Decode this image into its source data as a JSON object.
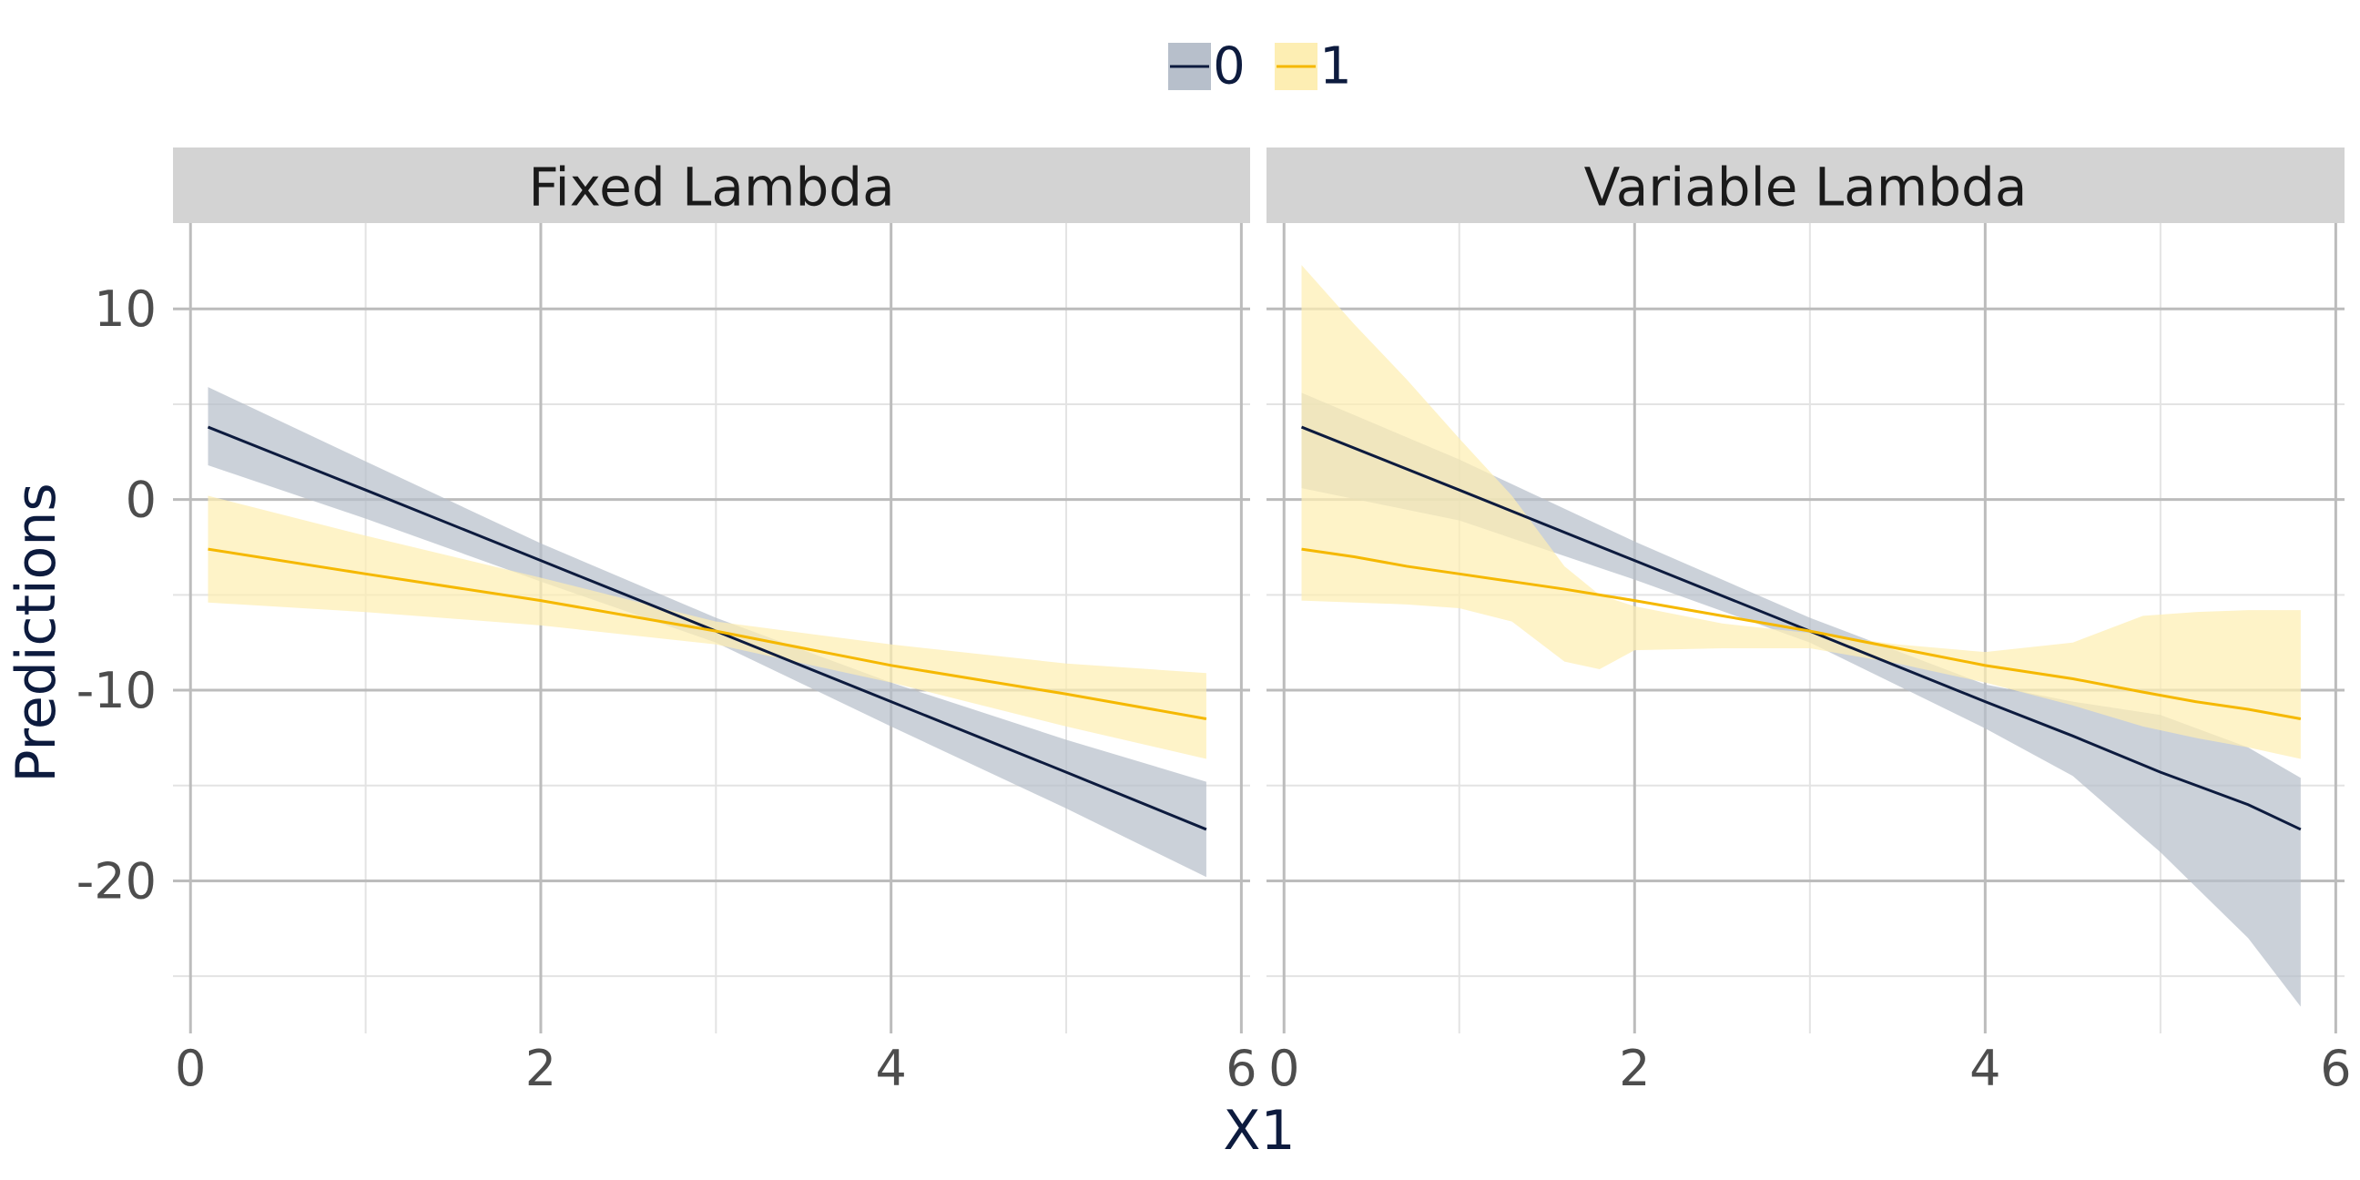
{
  "chart_data": {
    "type": "line",
    "xlabel": "X1",
    "ylabel": "Predictions",
    "xlim": [
      -0.1,
      6.05
    ],
    "ylim": [
      -28,
      14.5
    ],
    "xticks": [
      0,
      2,
      4,
      6
    ],
    "xtick_labels": [
      "0",
      "2",
      "4",
      "6"
    ],
    "yticks": [
      10,
      0,
      -10,
      -20
    ],
    "ytick_labels": [
      "10",
      "0",
      "-10",
      "-20"
    ],
    "grid": true,
    "legend": {
      "position": "top",
      "entries": [
        {
          "label": "0",
          "line_color": "#0d1b3e",
          "fill_color": "#b7bfcb"
        },
        {
          "label": "1",
          "line_color": "#f5b800",
          "fill_color": "#fdeeb3"
        }
      ]
    },
    "panels": [
      {
        "title": "Fixed Lambda",
        "series": [
          {
            "name": "0",
            "x": [
              0.1,
              1.0,
              2.0,
              3.0,
              4.0,
              5.0,
              5.8
            ],
            "y": [
              3.8,
              0.5,
              -3.2,
              -6.9,
              -10.6,
              -14.3,
              -17.3
            ],
            "lower": [
              1.8,
              -1.0,
              -4.3,
              -7.5,
              -11.9,
              -16.2,
              -19.8
            ],
            "upper": [
              5.9,
              2.0,
              -2.3,
              -6.2,
              -9.6,
              -12.6,
              -14.8
            ]
          },
          {
            "name": "1",
            "x": [
              0.1,
              1.0,
              2.0,
              3.0,
              4.0,
              5.0,
              5.8
            ],
            "y": [
              -2.6,
              -3.9,
              -5.3,
              -6.9,
              -8.7,
              -10.2,
              -11.5
            ],
            "lower": [
              -5.4,
              -5.9,
              -6.6,
              -7.6,
              -9.6,
              -11.9,
              -13.6
            ],
            "upper": [
              0.2,
              -1.9,
              -4.1,
              -6.4,
              -7.6,
              -8.6,
              -9.1
            ]
          }
        ]
      },
      {
        "title": "Variable Lambda",
        "series": [
          {
            "name": "0",
            "x": [
              0.1,
              1.0,
              2.0,
              3.0,
              4.0,
              4.5,
              5.0,
              5.5,
              5.8
            ],
            "y": [
              3.8,
              0.5,
              -3.2,
              -6.9,
              -10.6,
              -12.4,
              -14.3,
              -16.0,
              -17.3
            ],
            "lower": [
              0.6,
              -1.1,
              -4.2,
              -7.5,
              -12.0,
              -14.5,
              -18.5,
              -23.0,
              -26.6
            ],
            "upper": [
              5.6,
              2.1,
              -2.2,
              -6.2,
              -9.7,
              -10.6,
              -11.3,
              -13.0,
              -14.6
            ]
          },
          {
            "name": "1",
            "x": [
              0.1,
              0.4,
              0.7,
              1.0,
              1.3,
              1.6,
              1.8,
              2.0,
              2.5,
              3.0,
              3.5,
              4.0,
              4.5,
              4.9,
              5.2,
              5.5,
              5.8
            ],
            "y": [
              -2.6,
              -3.0,
              -3.5,
              -3.9,
              -4.3,
              -4.7,
              -5.0,
              -5.3,
              -6.1,
              -6.9,
              -7.8,
              -8.7,
              -9.4,
              -10.1,
              -10.6,
              -11.0,
              -11.5
            ],
            "lower": [
              -5.3,
              -5.4,
              -5.5,
              -5.7,
              -6.4,
              -8.5,
              -8.9,
              -7.9,
              -7.8,
              -7.8,
              -8.6,
              -9.6,
              -10.8,
              -11.9,
              -12.5,
              -13.0,
              -13.6
            ],
            "upper": [
              12.3,
              9.2,
              6.3,
              3.2,
              0.2,
              -3.5,
              -5.0,
              -5.6,
              -6.5,
              -7.0,
              -7.6,
              -8.0,
              -7.5,
              -6.1,
              -5.9,
              -5.8,
              -5.8
            ]
          }
        ]
      }
    ]
  }
}
